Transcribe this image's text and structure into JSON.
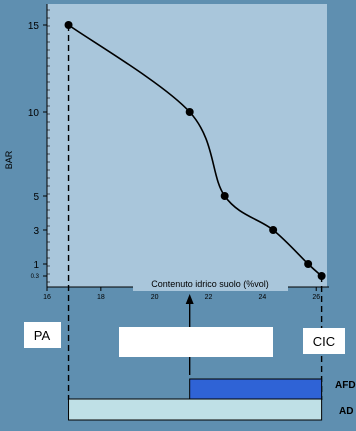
{
  "colors": {
    "background": "#5f8fb0",
    "plot_area": "#a9c6db",
    "curve": "#000000",
    "afd_bar": "#2f63d6",
    "ad_bar": "#bfe0e6",
    "label_box": "#ffffff"
  },
  "chart_data": {
    "type": "line",
    "title": "",
    "xlabel": "Contenuto  idrico suolo  (%vol)",
    "ylabel": "BAR",
    "xlim": [
      16,
      26.4
    ],
    "x_ticks": [
      "16",
      "18",
      "20",
      "22",
      "24",
      "26"
    ],
    "y_ticks": [
      {
        "value": 15,
        "label": "15"
      },
      {
        "value": 10,
        "label": "10"
      },
      {
        "value": 5,
        "label": "5"
      },
      {
        "value": 3,
        "label": "3"
      },
      {
        "value": 1,
        "label": "1"
      },
      {
        "value": 0.3,
        "label": "0.3"
      }
    ],
    "points": [
      {
        "x": 16.8,
        "y": 15
      },
      {
        "x": 21.3,
        "y": 10
      },
      {
        "x": 22.6,
        "y": 5
      },
      {
        "x": 24.4,
        "y": 3
      },
      {
        "x": 25.7,
        "y": 1
      },
      {
        "x": 26.2,
        "y": 0.3
      }
    ],
    "grid": false,
    "annotations": {
      "pa": "PA",
      "cic": "CIC",
      "afd": "AFD",
      "ad": "AD"
    },
    "reference_x": {
      "pa": 16.8,
      "arrow": 21.3,
      "cic": 26.2
    }
  }
}
